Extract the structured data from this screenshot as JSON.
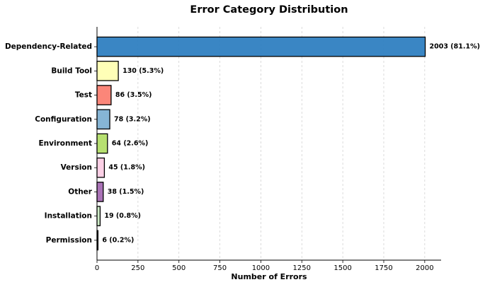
{
  "chart_data": {
    "type": "barh",
    "title": "Error Category Distribution",
    "xlabel": "Number of Errors",
    "categories": [
      "Dependency-Related",
      "Build Tool",
      "Test",
      "Configuration",
      "Environment",
      "Version",
      "Other",
      "Installation",
      "Permission"
    ],
    "values": [
      2003,
      130,
      86,
      78,
      64,
      45,
      38,
      19,
      6
    ],
    "value_labels": [
      "2003 (81.1%)",
      "130 (5.3%)",
      "86 (3.5%)",
      "78 (3.2%)",
      "64 (2.6%)",
      "45 (1.8%)",
      "38 (1.5%)",
      "19 (0.8%)",
      "6 (0.2%)"
    ],
    "colors": [
      "#2f7fc1",
      "#ffffb3",
      "#fb8072",
      "#80b1d3",
      "#b3de69",
      "#fccde5",
      "#a56cb3",
      "#ccebc5",
      "#333333"
    ],
    "xlim": [
      0,
      2100
    ],
    "xticks": [
      0,
      250,
      500,
      750,
      1000,
      1250,
      1500,
      1750,
      2000
    ],
    "grid": true
  }
}
